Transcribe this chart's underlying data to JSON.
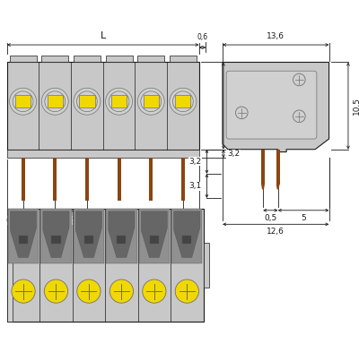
{
  "bg_color": "#ffffff",
  "gray_body": "#b8b8b8",
  "gray_light": "#c8c8c8",
  "gray_inner": "#d0d0d0",
  "dark_gray": "#707070",
  "darker_gray": "#555555",
  "yellow_color": "#f0d800",
  "brown_color": "#8B4513",
  "line_color": "#1a1a1a",
  "dim_color": "#1a1a1a",
  "fig_width": 4.0,
  "fig_height": 3.84,
  "n_poles": 6
}
